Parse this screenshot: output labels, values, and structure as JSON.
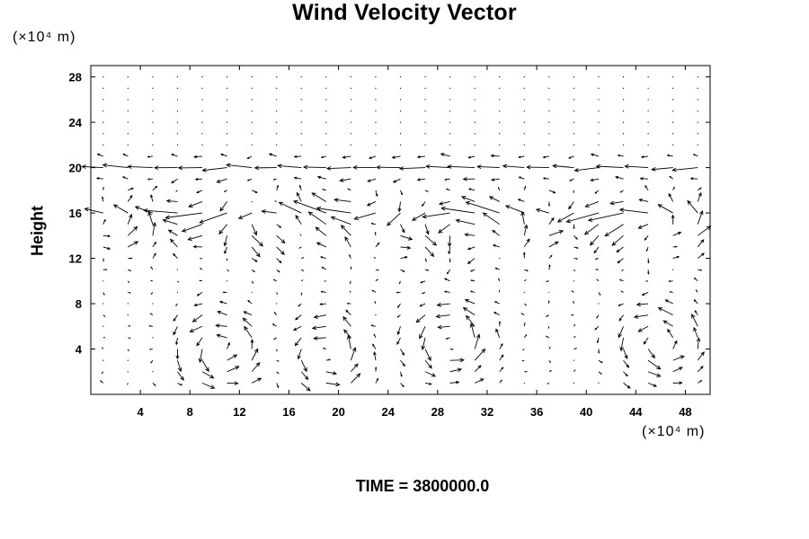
{
  "chart_data": {
    "type": "vector-field",
    "title": "Wind Velocity Vector",
    "xlabel": "",
    "ylabel": "Height",
    "x_unit_label": "(×10⁴ m)",
    "y_unit_label": "(×10⁴ m)",
    "xlim": [
      0,
      50
    ],
    "ylim": [
      0,
      29
    ],
    "xticks": [
      4,
      8,
      12,
      16,
      20,
      24,
      28,
      32,
      36,
      40,
      44,
      48
    ],
    "yticks": [
      4,
      8,
      12,
      16,
      20,
      24,
      28
    ],
    "grid": false,
    "annotation": "TIME = 3800000.0",
    "features": {
      "upper_jet_levels": [
        16,
        20
      ],
      "vortex_centers": [
        [
          10.5,
          4
        ],
        [
          19,
          3.5
        ],
        [
          29,
          4.5
        ],
        [
          46,
          4.5
        ]
      ]
    }
  }
}
